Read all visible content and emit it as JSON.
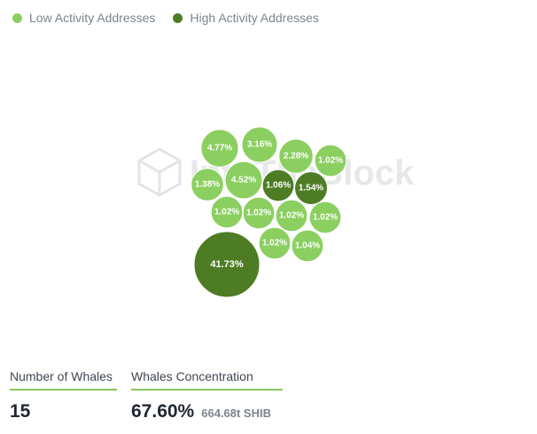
{
  "legend": {
    "items": [
      {
        "label": "Low Activity Addresses",
        "color": "#8bcf60"
      },
      {
        "label": "High Activity Addresses",
        "color": "#4e7c25"
      }
    ]
  },
  "watermark": {
    "text": "IntoTheBlock"
  },
  "chart_data": {
    "type": "bubble",
    "unit": "%",
    "series": [
      {
        "name": "Low Activity Addresses",
        "color": "#8bcf60",
        "values": [
          4.77,
          3.16,
          2.28,
          1.02,
          1.38,
          4.52,
          1.02,
          1.02,
          1.02,
          1.02,
          1.02,
          1.04
        ]
      },
      {
        "name": "High Activity Addresses",
        "color": "#4e7c25",
        "values": [
          1.06,
          1.54,
          41.73
        ]
      }
    ],
    "labels": [
      "4.77%",
      "3.16%",
      "2.28%",
      "1.02%",
      "1.38%",
      "4.52%",
      "1.06%",
      "1.54%",
      "1.02%",
      "1.02%",
      "1.02%",
      "1.02%",
      "1.02%",
      "1.04%",
      "41.73%"
    ]
  },
  "stats": {
    "whales": {
      "label": "Number of Whales",
      "value": "15"
    },
    "concentration": {
      "label": "Whales Concentration",
      "value": "67.60%",
      "sub": "664.68t SHIB"
    }
  }
}
